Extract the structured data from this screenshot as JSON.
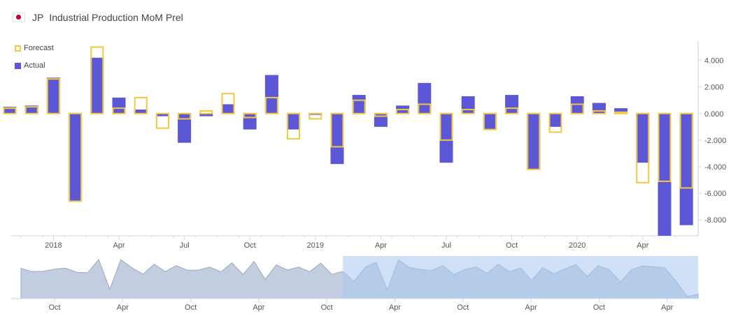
{
  "header": {
    "country": "JP",
    "title": "Industrial Production MoM Prel"
  },
  "legend": {
    "forecast_label": "Forecast",
    "actual_label": "Actual"
  },
  "colors": {
    "actual": "#5b57d6",
    "forecast": "#f2c744",
    "navigator_fill": "#b7c5d9",
    "navigator_selected": "#a9c8f0",
    "flag_dot": "#bc002d"
  },
  "chart_data": {
    "type": "bar",
    "y_tick_labels": [
      "4.000",
      "2.000",
      "0.000",
      "-2.000",
      "-4.000",
      "-6.000",
      "-8.000"
    ],
    "y_tick_values": [
      4,
      2,
      0,
      -2,
      -4,
      -6,
      -8
    ],
    "ylim": [
      -9.2,
      5.5
    ],
    "x_tick_labels": [
      {
        "label": "2018",
        "index": 2
      },
      {
        "label": "Apr",
        "index": 5
      },
      {
        "label": "Jul",
        "index": 8
      },
      {
        "label": "Oct",
        "index": 11
      },
      {
        "label": "2019",
        "index": 14
      },
      {
        "label": "Apr",
        "index": 17
      },
      {
        "label": "Jul",
        "index": 20
      },
      {
        "label": "Oct",
        "index": 23
      },
      {
        "label": "2020",
        "index": 26
      },
      {
        "label": "Apr",
        "index": 29
      }
    ],
    "series": [
      {
        "name": "Forecast",
        "values": [
          0.4,
          0.5,
          2.6,
          -6.6,
          5.0,
          0.4,
          1.2,
          -1.1,
          -0.4,
          0.2,
          1.5,
          -0.3,
          1.2,
          -1.9,
          -0.4,
          -2.5,
          1.0,
          -0.2,
          0.3,
          0.7,
          -2.0,
          0.3,
          -1.2,
          0.4,
          -4.2,
          -1.4,
          0.7,
          0.2,
          0.1,
          -5.2,
          -5.1,
          -5.6
        ]
      },
      {
        "name": "Actual",
        "values": [
          0.5,
          0.6,
          2.7,
          -6.6,
          4.2,
          1.2,
          0.3,
          -0.2,
          -2.2,
          -0.2,
          0.7,
          -1.2,
          2.9,
          -1.2,
          -0.1,
          -3.8,
          1.4,
          -1.0,
          0.6,
          2.3,
          -3.7,
          1.3,
          -1.2,
          1.4,
          -4.2,
          -1.0,
          1.3,
          0.8,
          0.4,
          -3.7,
          -9.2,
          -8.4
        ]
      }
    ],
    "navigator": {
      "x_tick_labels": [
        "Oct",
        "Apr",
        "Oct",
        "Apr",
        "Oct",
        "Apr",
        "Oct",
        "Apr",
        "Oct",
        "Apr"
      ],
      "values": [
        1.0,
        -0.2,
        -0.1,
        0.7,
        1.1,
        -0.4,
        -0.6,
        4.2,
        -6.6,
        4.2,
        1.2,
        -1.1,
        2.5,
        -0.2,
        2.0,
        0.3,
        0.4,
        1.5,
        -0.3,
        3.0,
        -1.2,
        3.5,
        -3.0,
        2.3,
        0.4,
        1.5,
        -0.2,
        2.9,
        -1.2,
        -0.1,
        -3.8,
        1.4,
        3.2,
        -6.8,
        4.1,
        1.3,
        0.6,
        0.2,
        2.0,
        -1.2,
        0.6,
        1.5,
        -0.8,
        2.5,
        -0.2,
        1.2,
        -3.4,
        1.3,
        -1.0,
        0.8,
        2.4,
        -2.0,
        2.0,
        0.5,
        -4.0,
        0.5,
        1.9,
        1.6,
        1.2,
        -3.7,
        -9.2,
        -8.4
      ],
      "selected_start": 29
    }
  }
}
